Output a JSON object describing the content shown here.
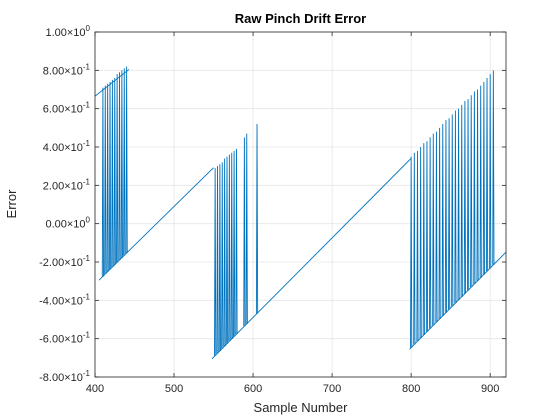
{
  "chart_data": {
    "type": "line",
    "title": "Raw Pinch Drift Error",
    "xlabel": "Sample Number",
    "ylabel": "Error",
    "xlim": [
      400,
      920
    ],
    "ylim": [
      -0.8,
      1.0
    ],
    "grid": true,
    "x_ticks": [
      400,
      500,
      600,
      700,
      800,
      900
    ],
    "x_tick_labels": [
      "400",
      "500",
      "600",
      "700",
      "800",
      "900"
    ],
    "y_ticks": [
      {
        "value": 1.0,
        "mant": "1.00",
        "exp": "0"
      },
      {
        "value": 0.8,
        "mant": "8.00",
        "exp": "-1"
      },
      {
        "value": 0.6,
        "mant": "6.00",
        "exp": "-1"
      },
      {
        "value": 0.4,
        "mant": "4.00",
        "exp": "-1"
      },
      {
        "value": 0.2,
        "mant": "2.00",
        "exp": "-1"
      },
      {
        "value": 0.0,
        "mant": "0.00",
        "exp": "0"
      },
      {
        "value": -0.2,
        "mant": "-2.00",
        "exp": "-1"
      },
      {
        "value": -0.4,
        "mant": "-4.00",
        "exp": "-1"
      },
      {
        "value": -0.6,
        "mant": "-6.00",
        "exp": "-1"
      },
      {
        "value": -0.8,
        "mant": "-8.00",
        "exp": "-1"
      }
    ],
    "times_symbol": "×",
    "base": "10",
    "line_color": "#0072bd",
    "series": [
      {
        "drift_segments": [
          {
            "x_start": 400,
            "x_end": 443,
            "y_start": 0.665,
            "slope": 0.00325
          },
          {
            "x_start": 405,
            "x_end": 550,
            "y_start": -0.295,
            "slope": 0.00405
          },
          {
            "x_start": 548,
            "x_end": 800,
            "y_start": -0.705,
            "slope": 0.00415
          },
          {
            "x_start": 798,
            "x_end": 920,
            "y_start": -0.655,
            "slope": 0.00415
          }
        ],
        "spikes": [
          {
            "x": 410,
            "value": 0.71
          },
          {
            "x": 413,
            "value": 0.72
          },
          {
            "x": 416,
            "value": 0.73
          },
          {
            "x": 419,
            "value": 0.74
          },
          {
            "x": 422,
            "value": 0.75
          },
          {
            "x": 425,
            "value": 0.76
          },
          {
            "x": 428,
            "value": 0.78
          },
          {
            "x": 431,
            "value": 0.79
          },
          {
            "x": 434,
            "value": 0.8
          },
          {
            "x": 437,
            "value": 0.81
          },
          {
            "x": 440,
            "value": 0.82
          },
          {
            "x": 552,
            "value": 0.29
          },
          {
            "x": 555,
            "value": 0.3
          },
          {
            "x": 558,
            "value": 0.31
          },
          {
            "x": 561,
            "value": 0.32
          },
          {
            "x": 564,
            "value": 0.34
          },
          {
            "x": 567,
            "value": 0.35
          },
          {
            "x": 570,
            "value": 0.36
          },
          {
            "x": 573,
            "value": 0.37
          },
          {
            "x": 576,
            "value": 0.38
          },
          {
            "x": 579,
            "value": 0.39
          },
          {
            "x": 589,
            "value": 0.45
          },
          {
            "x": 592,
            "value": 0.47
          },
          {
            "x": 605,
            "value": 0.52
          },
          {
            "x": 800,
            "value": 0.35
          },
          {
            "x": 804,
            "value": 0.37
          },
          {
            "x": 808,
            "value": 0.38
          },
          {
            "x": 812,
            "value": 0.4
          },
          {
            "x": 816,
            "value": 0.42
          },
          {
            "x": 820,
            "value": 0.43
          },
          {
            "x": 824,
            "value": 0.45
          },
          {
            "x": 828,
            "value": 0.47
          },
          {
            "x": 832,
            "value": 0.48
          },
          {
            "x": 836,
            "value": 0.5
          },
          {
            "x": 840,
            "value": 0.52
          },
          {
            "x": 844,
            "value": 0.54
          },
          {
            "x": 848,
            "value": 0.55
          },
          {
            "x": 852,
            "value": 0.57
          },
          {
            "x": 856,
            "value": 0.59
          },
          {
            "x": 860,
            "value": 0.6
          },
          {
            "x": 864,
            "value": 0.62
          },
          {
            "x": 868,
            "value": 0.64
          },
          {
            "x": 872,
            "value": 0.65
          },
          {
            "x": 876,
            "value": 0.67
          },
          {
            "x": 880,
            "value": 0.69
          },
          {
            "x": 884,
            "value": 0.7
          },
          {
            "x": 888,
            "value": 0.72
          },
          {
            "x": 892,
            "value": 0.74
          },
          {
            "x": 896,
            "value": 0.76
          },
          {
            "x": 900,
            "value": 0.78
          },
          {
            "x": 904,
            "value": 0.8
          }
        ]
      }
    ]
  }
}
